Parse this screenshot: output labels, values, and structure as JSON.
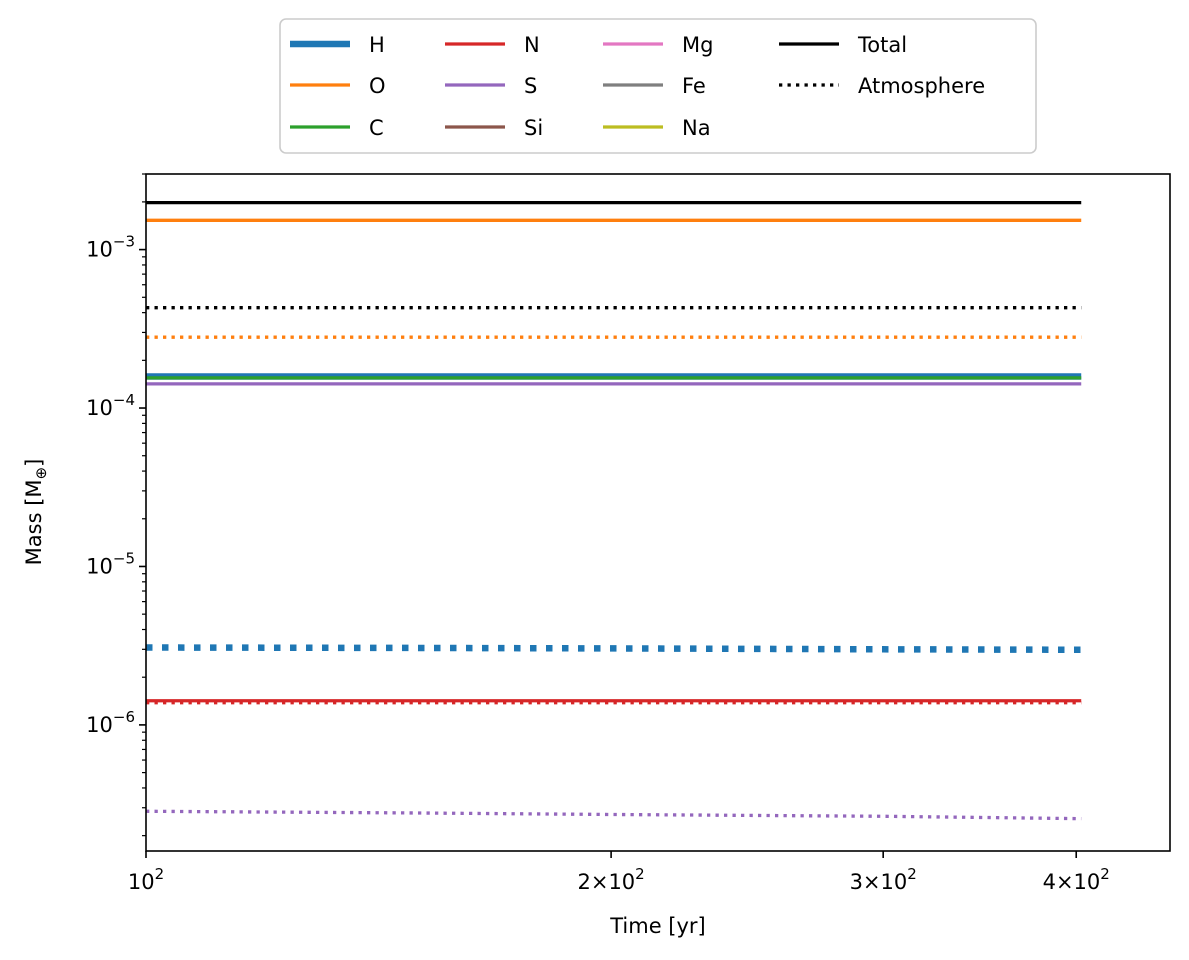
{
  "chart_data": {
    "type": "line",
    "title": "",
    "xlabel": "Time [yr]",
    "ylabel_main": "Mass [M",
    "ylabel_sub": "⊕",
    "ylabel_end": "]",
    "xscale": "log",
    "yscale": "log",
    "xlim": [
      100,
      460
    ],
    "ylim": [
      1.6e-07,
      0.003
    ],
    "grid": false,
    "legend_position": "above plot, centered, 4 columns",
    "x_ticks": [
      {
        "value": 100,
        "base": "10",
        "exp": "2",
        "mult": ""
      },
      {
        "value": 200,
        "base": "10",
        "exp": "2",
        "mult": "2×"
      },
      {
        "value": 300,
        "base": "10",
        "exp": "2",
        "mult": "3×"
      },
      {
        "value": 400,
        "base": "10",
        "exp": "2",
        "mult": "4×"
      }
    ],
    "y_ticks": [
      {
        "value": 0.001,
        "base": "10",
        "exp": "−3"
      },
      {
        "value": 0.0001,
        "base": "10",
        "exp": "−4"
      },
      {
        "value": 1e-05,
        "base": "10",
        "exp": "−5"
      },
      {
        "value": 1e-06,
        "base": "10",
        "exp": "−6"
      }
    ],
    "legend": [
      {
        "name": "H",
        "color": "#1f77b4",
        "style": "solid-thick"
      },
      {
        "name": "O",
        "color": "#ff7f0e",
        "style": "solid"
      },
      {
        "name": "C",
        "color": "#2ca02c",
        "style": "solid"
      },
      {
        "name": "N",
        "color": "#d62728",
        "style": "solid"
      },
      {
        "name": "S",
        "color": "#9467bd",
        "style": "solid"
      },
      {
        "name": "Si",
        "color": "#8c564b",
        "style": "solid"
      },
      {
        "name": "Mg",
        "color": "#e377c2",
        "style": "solid"
      },
      {
        "name": "Fe",
        "color": "#7f7f7f",
        "style": "solid"
      },
      {
        "name": "Na",
        "color": "#bcbd22",
        "style": "solid"
      },
      {
        "name": "Total",
        "color": "#000000",
        "style": "solid"
      },
      {
        "name": "Atmosphere",
        "color": "#000000",
        "style": "dotted"
      }
    ],
    "series": [
      {
        "name": "Total",
        "color": "#000000",
        "dash": "solid",
        "width": "normal",
        "x": [
          100,
          403
        ],
        "y": [
          0.00198,
          0.00198
        ]
      },
      {
        "name": "O",
        "color": "#ff7f0e",
        "dash": "solid",
        "width": "normal",
        "x": [
          100,
          403
        ],
        "y": [
          0.00153,
          0.00153
        ]
      },
      {
        "name": "Atmosphere",
        "color": "#000000",
        "dash": "dotted",
        "width": "normal",
        "x": [
          100,
          403
        ],
        "y": [
          0.00043,
          0.00043
        ]
      },
      {
        "name": "O atmosphere",
        "color": "#ff7f0e",
        "dash": "dotted",
        "width": "normal",
        "x": [
          100,
          403
        ],
        "y": [
          0.00028,
          0.00028
        ]
      },
      {
        "name": "H",
        "color": "#1f77b4",
        "dash": "solid",
        "width": "thick",
        "x": [
          100,
          403
        ],
        "y": [
          0.000158,
          0.000158
        ]
      },
      {
        "name": "C",
        "color": "#2ca02c",
        "dash": "solid",
        "width": "normal",
        "x": [
          100,
          403
        ],
        "y": [
          0.000155,
          0.000155
        ]
      },
      {
        "name": "S",
        "color": "#9467bd",
        "dash": "solid",
        "width": "normal",
        "x": [
          100,
          403
        ],
        "y": [
          0.000142,
          0.000142
        ]
      },
      {
        "name": "H atmosphere",
        "color": "#1f77b4",
        "dash": "dotted",
        "width": "thick",
        "x": [
          100,
          150,
          200,
          300,
          403
        ],
        "y": [
          3.08e-06,
          3.06e-06,
          3.04e-06,
          3e-06,
          2.98e-06
        ]
      },
      {
        "name": "N",
        "color": "#d62728",
        "dash": "solid",
        "width": "normal",
        "x": [
          100,
          403
        ],
        "y": [
          1.42e-06,
          1.42e-06
        ]
      },
      {
        "name": "N atmosphere",
        "color": "#d62728",
        "dash": "dotted",
        "width": "normal",
        "x": [
          100,
          403
        ],
        "y": [
          1.38e-06,
          1.38e-06
        ]
      },
      {
        "name": "S atmosphere",
        "color": "#9467bd",
        "dash": "dotted",
        "width": "normal",
        "x": [
          100,
          150,
          200,
          300,
          403
        ],
        "y": [
          2.85e-07,
          2.78e-07,
          2.72e-07,
          2.65e-07,
          2.56e-07
        ]
      }
    ]
  }
}
